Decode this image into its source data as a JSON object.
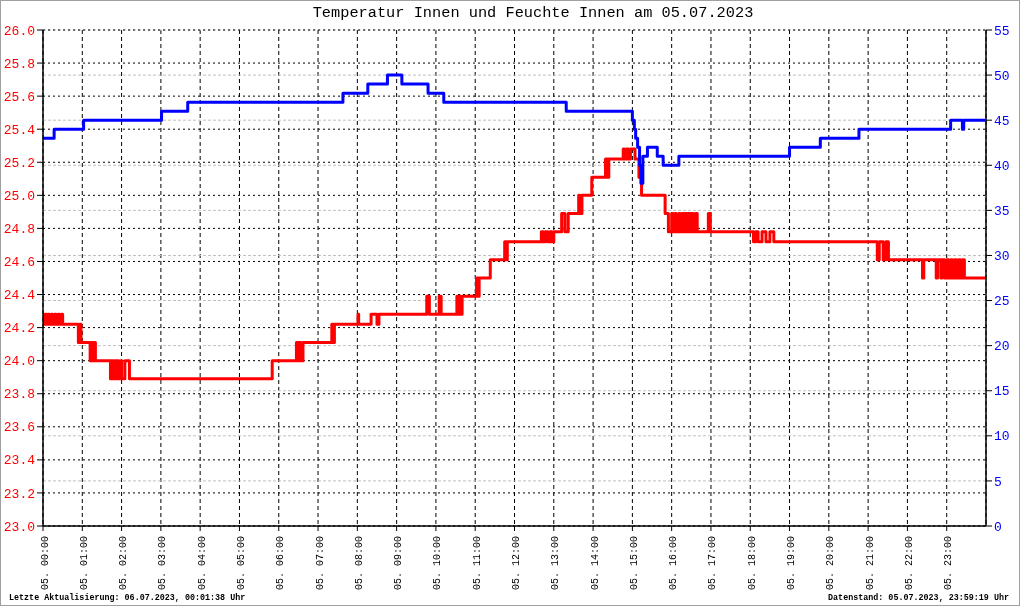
{
  "chart_data": {
    "type": "step",
    "title": "Temperatur Innen und Feuchte Innen am 05.07.2023",
    "annotations": [
      "Letzte Aktualisierung: 06.07.2023, 00:01:38 Uhr",
      "Datenstand: 05.07.2023, 23:59:19 Uhr"
    ],
    "xlim": [
      "2023-07-05T00:00",
      "2023-07-06T00:00"
    ],
    "xticks": [
      {
        "value": "2023-07-05T00:00",
        "label": "05. 00:00"
      },
      {
        "value": "2023-07-05T01:00",
        "label": "05. 01:00"
      },
      {
        "value": "2023-07-05T02:00",
        "label": "05. 02:00"
      },
      {
        "value": "2023-07-05T03:00",
        "label": "05. 03:00"
      },
      {
        "value": "2023-07-05T04:00",
        "label": "05. 04:00"
      },
      {
        "value": "2023-07-05T05:00",
        "label": "05. 05:00"
      },
      {
        "value": "2023-07-05T06:00",
        "label": "05. 06:00"
      },
      {
        "value": "2023-07-05T07:00",
        "label": "05. 07:00"
      },
      {
        "value": "2023-07-05T08:00",
        "label": "05. 08:00"
      },
      {
        "value": "2023-07-05T09:00",
        "label": "05. 09:00"
      },
      {
        "value": "2023-07-05T10:00",
        "label": "05. 10:00"
      },
      {
        "value": "2023-07-05T11:00",
        "label": "05. 11:00"
      },
      {
        "value": "2023-07-05T12:00",
        "label": "05. 12:00"
      },
      {
        "value": "2023-07-05T13:00",
        "label": "05. 13:00"
      },
      {
        "value": "2023-07-05T14:00",
        "label": "05. 14:00"
      },
      {
        "value": "2023-07-05T15:00",
        "label": "05. 15:00"
      },
      {
        "value": "2023-07-05T16:00",
        "label": "05. 16:00"
      },
      {
        "value": "2023-07-05T17:00",
        "label": "05. 17:00"
      },
      {
        "value": "2023-07-05T18:00",
        "label": "05. 18:00"
      },
      {
        "value": "2023-07-05T19:00",
        "label": "05. 19:00"
      },
      {
        "value": "2023-07-05T20:00",
        "label": "05. 20:00"
      },
      {
        "value": "2023-07-05T21:00",
        "label": "05. 21:00"
      },
      {
        "value": "2023-07-05T22:00",
        "label": "05. 22:00"
      },
      {
        "value": "2023-07-05T23:00",
        "label": "05. 23:00"
      }
    ],
    "ylim": [
      23,
      26
    ],
    "yticks": [
      {
        "value": 23,
        "label": "23.0"
      },
      23.2,
      23.4,
      23.6,
      23.8,
      {
        "value": 24,
        "label": "24.0"
      },
      24.2,
      24.4,
      24.6,
      24.8,
      {
        "value": 25,
        "label": "25.0"
      },
      25.2,
      25.4,
      25.6,
      25.8,
      {
        "value": 26,
        "label": "26.0"
      }
    ],
    "y2lim": [
      0,
      55
    ],
    "y2ticks": [
      0,
      5,
      10,
      15,
      20,
      25,
      30,
      35,
      40,
      45,
      50,
      55
    ],
    "grid": true,
    "marker": "none",
    "line_style": "solid",
    "series": [
      {
        "color": "#ff0000",
        "x": [
          "2023-07-05T00:00",
          "2023-07-05T00:02",
          "2023-07-05T00:04",
          "2023-07-05T00:06",
          "2023-07-05T00:08",
          "2023-07-05T00:10",
          "2023-07-05T00:13",
          "2023-07-05T00:15",
          "2023-07-05T00:18",
          "2023-07-05T00:20",
          "2023-07-05T00:23",
          "2023-07-05T00:25",
          "2023-07-05T00:28",
          "2023-07-05T00:30",
          "2023-07-05T00:54",
          "2023-07-05T00:56",
          "2023-07-05T00:58",
          "2023-07-05T01:12",
          "2023-07-05T01:14",
          "2023-07-05T01:16",
          "2023-07-05T01:18",
          "2023-07-05T01:20",
          "2023-07-05T01:43",
          "2023-07-05T01:44",
          "2023-07-05T01:47",
          "2023-07-05T01:49",
          "2023-07-05T01:52",
          "2023-07-05T01:54",
          "2023-07-05T01:56",
          "2023-07-05T01:59",
          "2023-07-05T02:00",
          "2023-07-05T02:05",
          "2023-07-05T02:12",
          "2023-07-05T05:50",
          "2023-07-05T06:27",
          "2023-07-05T06:29",
          "2023-07-05T06:31",
          "2023-07-05T06:34",
          "2023-07-05T06:37",
          "2023-07-05T07:21",
          "2023-07-05T07:23",
          "2023-07-05T07:25",
          "2023-07-05T08:01",
          "2023-07-05T08:02",
          "2023-07-05T08:21",
          "2023-07-05T08:30",
          "2023-07-05T08:33",
          "2023-07-05T09:46",
          "2023-07-05T09:50",
          "2023-07-05T10:05",
          "2023-07-05T10:08",
          "2023-07-05T10:32",
          "2023-07-05T10:34",
          "2023-07-05T10:36",
          "2023-07-05T10:38",
          "2023-07-05T10:40",
          "2023-07-05T11:02",
          "2023-07-05T11:04",
          "2023-07-05T11:06",
          "2023-07-05T11:23",
          "2023-07-05T11:45",
          "2023-07-05T11:47",
          "2023-07-05T11:49",
          "2023-07-05T12:41",
          "2023-07-05T12:44",
          "2023-07-05T12:47",
          "2023-07-05T12:51",
          "2023-07-05T12:54",
          "2023-07-05T12:57",
          "2023-07-05T13:00",
          "2023-07-05T13:12",
          "2023-07-05T13:17",
          "2023-07-05T13:22",
          "2023-07-05T13:38",
          "2023-07-05T13:40",
          "2023-07-05T13:43",
          "2023-07-05T13:58",
          "2023-07-05T14:19",
          "2023-07-05T14:22",
          "2023-07-05T14:24",
          "2023-07-05T14:46",
          "2023-07-05T14:48",
          "2023-07-05T14:51",
          "2023-07-05T14:54",
          "2023-07-05T14:57",
          "2023-07-05T15:04",
          "2023-07-05T15:10",
          "2023-07-05T15:14",
          "2023-07-05T15:50",
          "2023-07-05T15:55",
          "2023-07-05T16:00",
          "2023-07-05T16:02",
          "2023-07-05T16:05",
          "2023-07-05T16:07",
          "2023-07-05T16:11",
          "2023-07-05T16:13",
          "2023-07-05T16:16",
          "2023-07-05T16:18",
          "2023-07-05T16:20",
          "2023-07-05T16:23",
          "2023-07-05T16:25",
          "2023-07-05T16:28",
          "2023-07-05T16:30",
          "2023-07-05T16:33",
          "2023-07-05T16:36",
          "2023-07-05T16:39",
          "2023-07-05T16:56",
          "2023-07-05T16:59",
          "2023-07-05T18:05",
          "2023-07-05T18:08",
          "2023-07-05T18:12",
          "2023-07-05T18:18",
          "2023-07-05T18:24",
          "2023-07-05T18:30",
          "2023-07-05T18:36",
          "2023-07-05T21:14",
          "2023-07-05T21:17",
          "2023-07-05T21:23",
          "2023-07-05T21:27",
          "2023-07-05T21:31",
          "2023-07-05T22:23",
          "2023-07-05T22:25",
          "2023-07-05T22:44",
          "2023-07-05T22:46",
          "2023-07-05T22:51",
          "2023-07-05T22:53",
          "2023-07-05T22:57",
          "2023-07-05T23:00",
          "2023-07-05T23:03",
          "2023-07-05T23:06",
          "2023-07-05T23:09",
          "2023-07-05T23:12",
          "2023-07-05T23:15",
          "2023-07-05T23:18",
          "2023-07-05T23:21",
          "2023-07-05T23:24",
          "2023-07-05T23:27",
          "2023-07-05T23:59"
        ],
        "values": [
          24.28,
          24.22,
          24.28,
          24.22,
          24.28,
          24.22,
          24.28,
          24.22,
          24.28,
          24.22,
          24.28,
          24.22,
          24.28,
          24.22,
          24.11,
          24.22,
          24.11,
          24.0,
          24.11,
          24.0,
          24.11,
          24.0,
          23.89,
          24.0,
          23.89,
          24.0,
          23.89,
          24.0,
          23.89,
          24.0,
          23.89,
          24.0,
          23.89,
          24.0,
          24.11,
          24.0,
          24.11,
          24.0,
          24.11,
          24.22,
          24.11,
          24.22,
          24.28,
          24.22,
          24.28,
          24.22,
          24.28,
          24.39,
          24.28,
          24.39,
          24.28,
          24.39,
          24.28,
          24.39,
          24.28,
          24.39,
          24.5,
          24.39,
          24.5,
          24.61,
          24.72,
          24.61,
          24.72,
          24.78,
          24.72,
          24.78,
          24.72,
          24.78,
          24.72,
          24.78,
          24.89,
          24.78,
          24.89,
          25.0,
          24.89,
          25.0,
          25.11,
          25.22,
          25.11,
          25.22,
          25.28,
          25.22,
          25.28,
          25.22,
          25.28,
          25.22,
          25.11,
          25.0,
          24.89,
          24.78,
          24.89,
          24.78,
          24.89,
          24.78,
          24.89,
          24.78,
          24.89,
          24.78,
          24.89,
          24.78,
          24.89,
          24.78,
          24.89,
          24.78,
          24.89,
          24.78,
          24.89,
          24.78,
          24.72,
          24.78,
          24.72,
          24.78,
          24.72,
          24.78,
          24.72,
          24.61,
          24.72,
          24.61,
          24.72,
          24.61,
          24.5,
          24.61,
          24.5,
          24.61,
          24.5,
          24.61,
          24.5,
          24.61,
          24.5,
          24.61,
          24.5,
          24.61,
          24.5,
          24.61,
          24.5,
          24.61,
          24.5,
          24.5
        ]
      },
      {
        "color": "#0000ff",
        "axis": "y2",
        "x": [
          "2023-07-05T00:00",
          "2023-07-05T00:17",
          "2023-07-05T01:02",
          "2023-07-05T03:01",
          "2023-07-05T03:41",
          "2023-07-05T07:38",
          "2023-07-05T08:16",
          "2023-07-05T08:46",
          "2023-07-05T09:08",
          "2023-07-05T09:48",
          "2023-07-05T10:12",
          "2023-07-05T13:19",
          "2023-07-05T15:00",
          "2023-07-05T15:03",
          "2023-07-05T15:05",
          "2023-07-05T15:08",
          "2023-07-05T15:11",
          "2023-07-05T15:13",
          "2023-07-05T15:16",
          "2023-07-05T15:23",
          "2023-07-05T15:38",
          "2023-07-05T15:47",
          "2023-07-05T16:11",
          "2023-07-05T19:00",
          "2023-07-05T19:47",
          "2023-07-05T20:46",
          "2023-07-05T23:06",
          "2023-07-05T23:24",
          "2023-07-05T23:26",
          "2023-07-05T23:59"
        ],
        "values": [
          43,
          44,
          45,
          46,
          47,
          48,
          49,
          50,
          49,
          48,
          47,
          46,
          45,
          44,
          43,
          42,
          40,
          38,
          41,
          42,
          41,
          40,
          41,
          42,
          43,
          44,
          45,
          44,
          45,
          45
        ]
      }
    ]
  }
}
